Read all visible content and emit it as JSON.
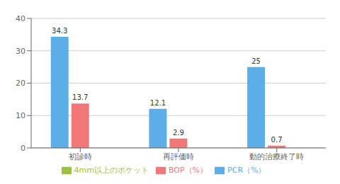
{
  "chart_data": {
    "type": "bar",
    "categories": [
      "初診時",
      "再評価時",
      "動的治療終了時"
    ],
    "series": [
      {
        "name": "PCR（%）",
        "color": "#5BAEE8",
        "values": [
          34.3,
          12.1,
          25
        ]
      },
      {
        "name": "BOP（%）",
        "color": "#F07878",
        "values": [
          13.7,
          2.9,
          0.7
        ]
      },
      {
        "name": "4mm以上のポケット",
        "color": "#9EC040",
        "values": [
          0,
          0,
          0
        ]
      }
    ],
    "ylim": [
      0,
      40
    ],
    "yticks": [
      0,
      10,
      20,
      30,
      40
    ],
    "grid": true,
    "legend": "bottom",
    "data_labels": true
  }
}
